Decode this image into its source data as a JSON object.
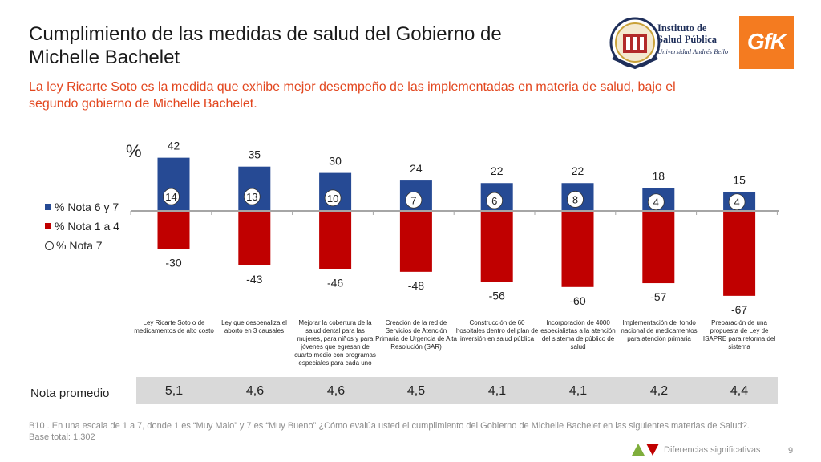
{
  "header": {
    "title": "Cumplimiento de las medidas de salud del Gobierno de Michelle Bachelet",
    "subtitle": "La ley Ricarte Soto es la medida que exhibe mejor desempeño de las implementadas en materia de salud, bajo el segundo gobierno de Michelle Bachelet."
  },
  "logos": {
    "isp_line1": "Instituto de",
    "isp_line2": "Salud Pública",
    "isp_line3": "Universidad Andrés Bello",
    "gfk": "GfK"
  },
  "colors": {
    "positive": "#264a94",
    "negative": "#c00000",
    "axis": "#a6a6a6",
    "accent": "#e2461e"
  },
  "chart_data": {
    "type": "bar",
    "unit_label": "%",
    "categories": [
      "Ley Ricarte Soto o de medicamentos de alto costo",
      "Ley que despenaliza el aborto en 3 causales",
      "Mejorar la cobertura de la salud dental para las mujeres, para niños y para jóvenes que egresan de cuarto medio con programas especiales para cada uno",
      "Creación de la red de Servicios de Atención Primaria de Urgencia de Alta Resolución (SAR)",
      "Construcción de 60 hospitales dentro del plan de inversión en salud pública",
      "Incorporación de 4000 especialistas a la atención del sistema de público de salud",
      "Implementación del fondo nacional de medicamentos para atención primaria",
      "Preparación de una propuesta de Ley de ISAPRE para reforma del sistema"
    ],
    "series": [
      {
        "name": "% Nota 6 y 7",
        "values": [
          42,
          35,
          30,
          24,
          22,
          22,
          18,
          15
        ]
      },
      {
        "name": "% Nota 1 a 4",
        "values": [
          -30,
          -43,
          -46,
          -48,
          -56,
          -60,
          -57,
          -67
        ]
      },
      {
        "name": "% Nota 7",
        "values": [
          14,
          13,
          10,
          7,
          6,
          8,
          4,
          4
        ]
      }
    ],
    "ylim": [
      -70,
      45
    ],
    "legend_position": "left"
  },
  "nota_promedio": {
    "label": "Nota promedio",
    "values": [
      "5,1",
      "4,6",
      "4,6",
      "4,5",
      "4,1",
      "4,1",
      "4,2",
      "4,4"
    ]
  },
  "footer": {
    "question": "B10 . En una escala de 1 a 7, donde 1 es “Muy Malo” y 7 es “Muy Bueno” ¿Cómo evalúa usted el cumplimiento del Gobierno de Michelle Bachelet en las siguientes materias de Salud?.",
    "base": "Base total: 1.302",
    "significance_label": "Diferencias significativas",
    "page_number": "9"
  }
}
